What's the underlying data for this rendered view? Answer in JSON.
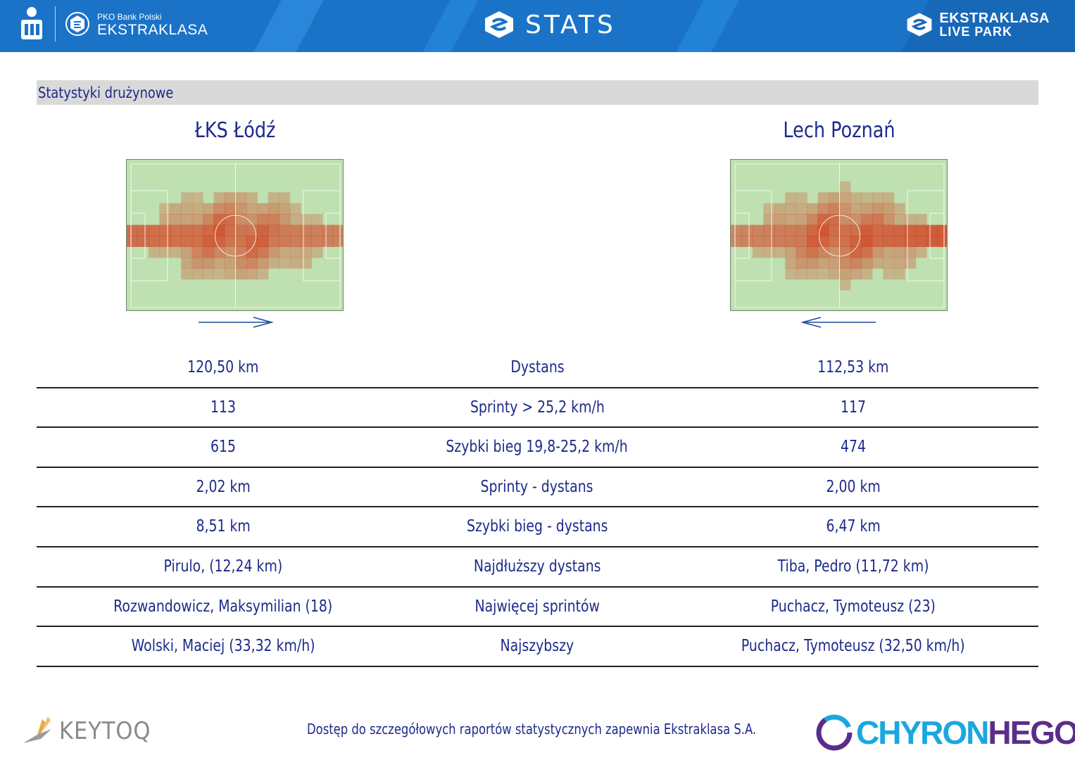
{
  "header": {
    "bank_label": "PKO Bank Polski",
    "league_label": "EKSTRAKLASA",
    "title": "STATS",
    "right_brand_line1": "EKSTRAKLASA",
    "right_brand_line2": "LIVE PARK",
    "colors": {
      "header_bg": "#1a73c7",
      "text": "#ffffff"
    }
  },
  "section": {
    "title": "Statystyki drużynowe"
  },
  "teams": {
    "left": {
      "name": "ŁKS Łódź",
      "attack_direction": "right"
    },
    "right": {
      "name": "Lech Poznań",
      "attack_direction": "left"
    }
  },
  "stats": [
    {
      "left": "120,50 km",
      "label": "Dystans",
      "right": "112,53 km"
    },
    {
      "left": "113",
      "label": "Sprinty > 25,2 km/h",
      "right": "117"
    },
    {
      "left": "615",
      "label": "Szybki bieg 19,8-25,2 km/h",
      "right": "474"
    },
    {
      "left": "2,02 km",
      "label": "Sprinty - dystans",
      "right": "2,00 km"
    },
    {
      "left": "8,51 km",
      "label": "Szybki bieg - dystans",
      "right": "6,47 km"
    },
    {
      "left": "Pirulo,  (12,24 km)",
      "label": "Najdłuższy dystans",
      "right": "Tiba, Pedro (11,72 km)"
    },
    {
      "left": "Rozwandowicz, Maksymilian (18)",
      "label": "Najwięcej sprintów",
      "right": "Puchacz, Tymoteusz (23)"
    },
    {
      "left": "Wolski, Maciej (33,32 km/h)",
      "label": "Najszybszy",
      "right": "Puchacz, Tymoteusz (32,50 km/h)"
    }
  ],
  "footer": {
    "note": "Dostęp do szczegółowych raportów statystycznych zapewnia Ekstraklasa S.A.",
    "left_logo": "KEYTOQ",
    "right_logo_part1": "CHYRON",
    "right_logo_part2": "HEGO"
  },
  "colors": {
    "text": "#1d2a8a",
    "section_bg": "#d9d9d9",
    "pitch_green": "#bfe0b0",
    "heat_red": "#d4381a"
  }
}
